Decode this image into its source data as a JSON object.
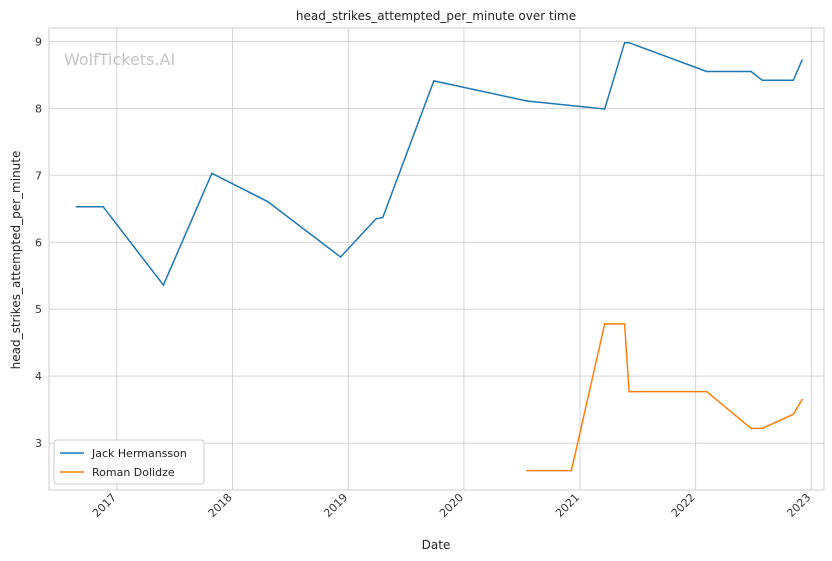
{
  "watermark": "WolfTickets.AI",
  "chart_data": {
    "type": "line",
    "title": "head_strikes_attempted_per_minute over time",
    "xlabel": "Date",
    "ylabel": "head_strikes_attempted_per_minute",
    "x_ticks": [
      "2017",
      "2018",
      "2019",
      "2020",
      "2021",
      "2022",
      "2023"
    ],
    "y_ticks": [
      3,
      4,
      5,
      6,
      7,
      8,
      9
    ],
    "xlim": [
      "2016-06-01",
      "2023-02-10"
    ],
    "ylim": [
      2.3,
      9.2
    ],
    "grid": true,
    "legend_position": "bottom-left",
    "series": [
      {
        "name": "Jack Hermansson",
        "color": "#1f77b4",
        "points": [
          {
            "x": "2016-08-27",
            "y": 6.53
          },
          {
            "x": "2016-11-19",
            "y": 6.53
          },
          {
            "x": "2017-05-28",
            "y": 5.36
          },
          {
            "x": "2017-10-28",
            "y": 7.03
          },
          {
            "x": "2018-04-21",
            "y": 6.61
          },
          {
            "x": "2018-12-08",
            "y": 5.78
          },
          {
            "x": "2019-03-30",
            "y": 6.35
          },
          {
            "x": "2019-04-20",
            "y": 6.37
          },
          {
            "x": "2019-09-28",
            "y": 8.41
          },
          {
            "x": "2020-07-18",
            "y": 8.11
          },
          {
            "x": "2021-03-20",
            "y": 7.99
          },
          {
            "x": "2021-05-22",
            "y": 8.98
          },
          {
            "x": "2021-06-05",
            "y": 8.98
          },
          {
            "x": "2022-02-05",
            "y": 8.55
          },
          {
            "x": "2022-06-25",
            "y": 8.55
          },
          {
            "x": "2022-07-30",
            "y": 8.42
          },
          {
            "x": "2022-11-05",
            "y": 8.42
          },
          {
            "x": "2022-12-03",
            "y": 8.72
          }
        ]
      },
      {
        "name": "Roman Dolidze",
        "color": "#ff7f0e",
        "points": [
          {
            "x": "2020-07-18",
            "y": 2.59
          },
          {
            "x": "2020-12-05",
            "y": 2.59
          },
          {
            "x": "2021-03-20",
            "y": 4.78
          },
          {
            "x": "2021-05-22",
            "y": 4.78
          },
          {
            "x": "2021-06-05",
            "y": 3.77
          },
          {
            "x": "2022-02-05",
            "y": 3.77
          },
          {
            "x": "2022-06-25",
            "y": 3.22
          },
          {
            "x": "2022-07-30",
            "y": 3.22
          },
          {
            "x": "2022-11-05",
            "y": 3.43
          },
          {
            "x": "2022-12-03",
            "y": 3.65
          }
        ]
      }
    ]
  }
}
